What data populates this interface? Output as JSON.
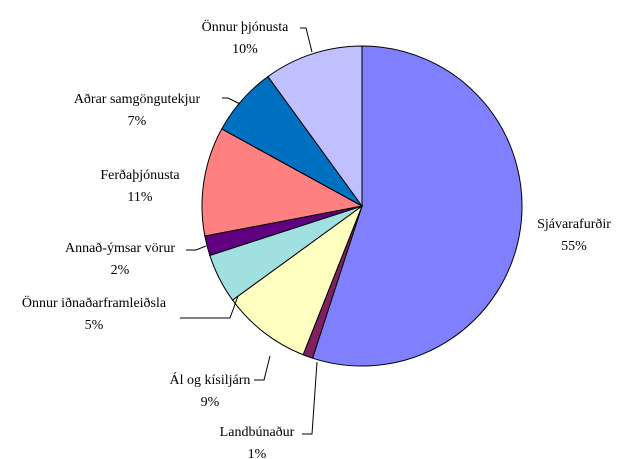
{
  "chart_data": {
    "type": "pie",
    "categories": [
      "Sjávarafurðir",
      "Landbúnaður",
      "Ál og kísiljárn",
      "Önnur iðnaðarframleiðsla",
      "Annað-ýmsar vörur",
      "Ferðaþjónusta",
      "Aðrar samgöngutekjur",
      "Önnur þjónusta"
    ],
    "values": [
      55,
      1,
      9,
      5,
      2,
      11,
      7,
      10
    ],
    "value_labels": [
      "55%",
      "1%",
      "9%",
      "5%",
      "2%",
      "11%",
      "7%",
      "10%"
    ],
    "colors": [
      "#8080ff",
      "#802060",
      "#ffffc0",
      "#a0e0e0",
      "#600080",
      "#ff8080",
      "#0070c0",
      "#c0c0ff"
    ]
  }
}
